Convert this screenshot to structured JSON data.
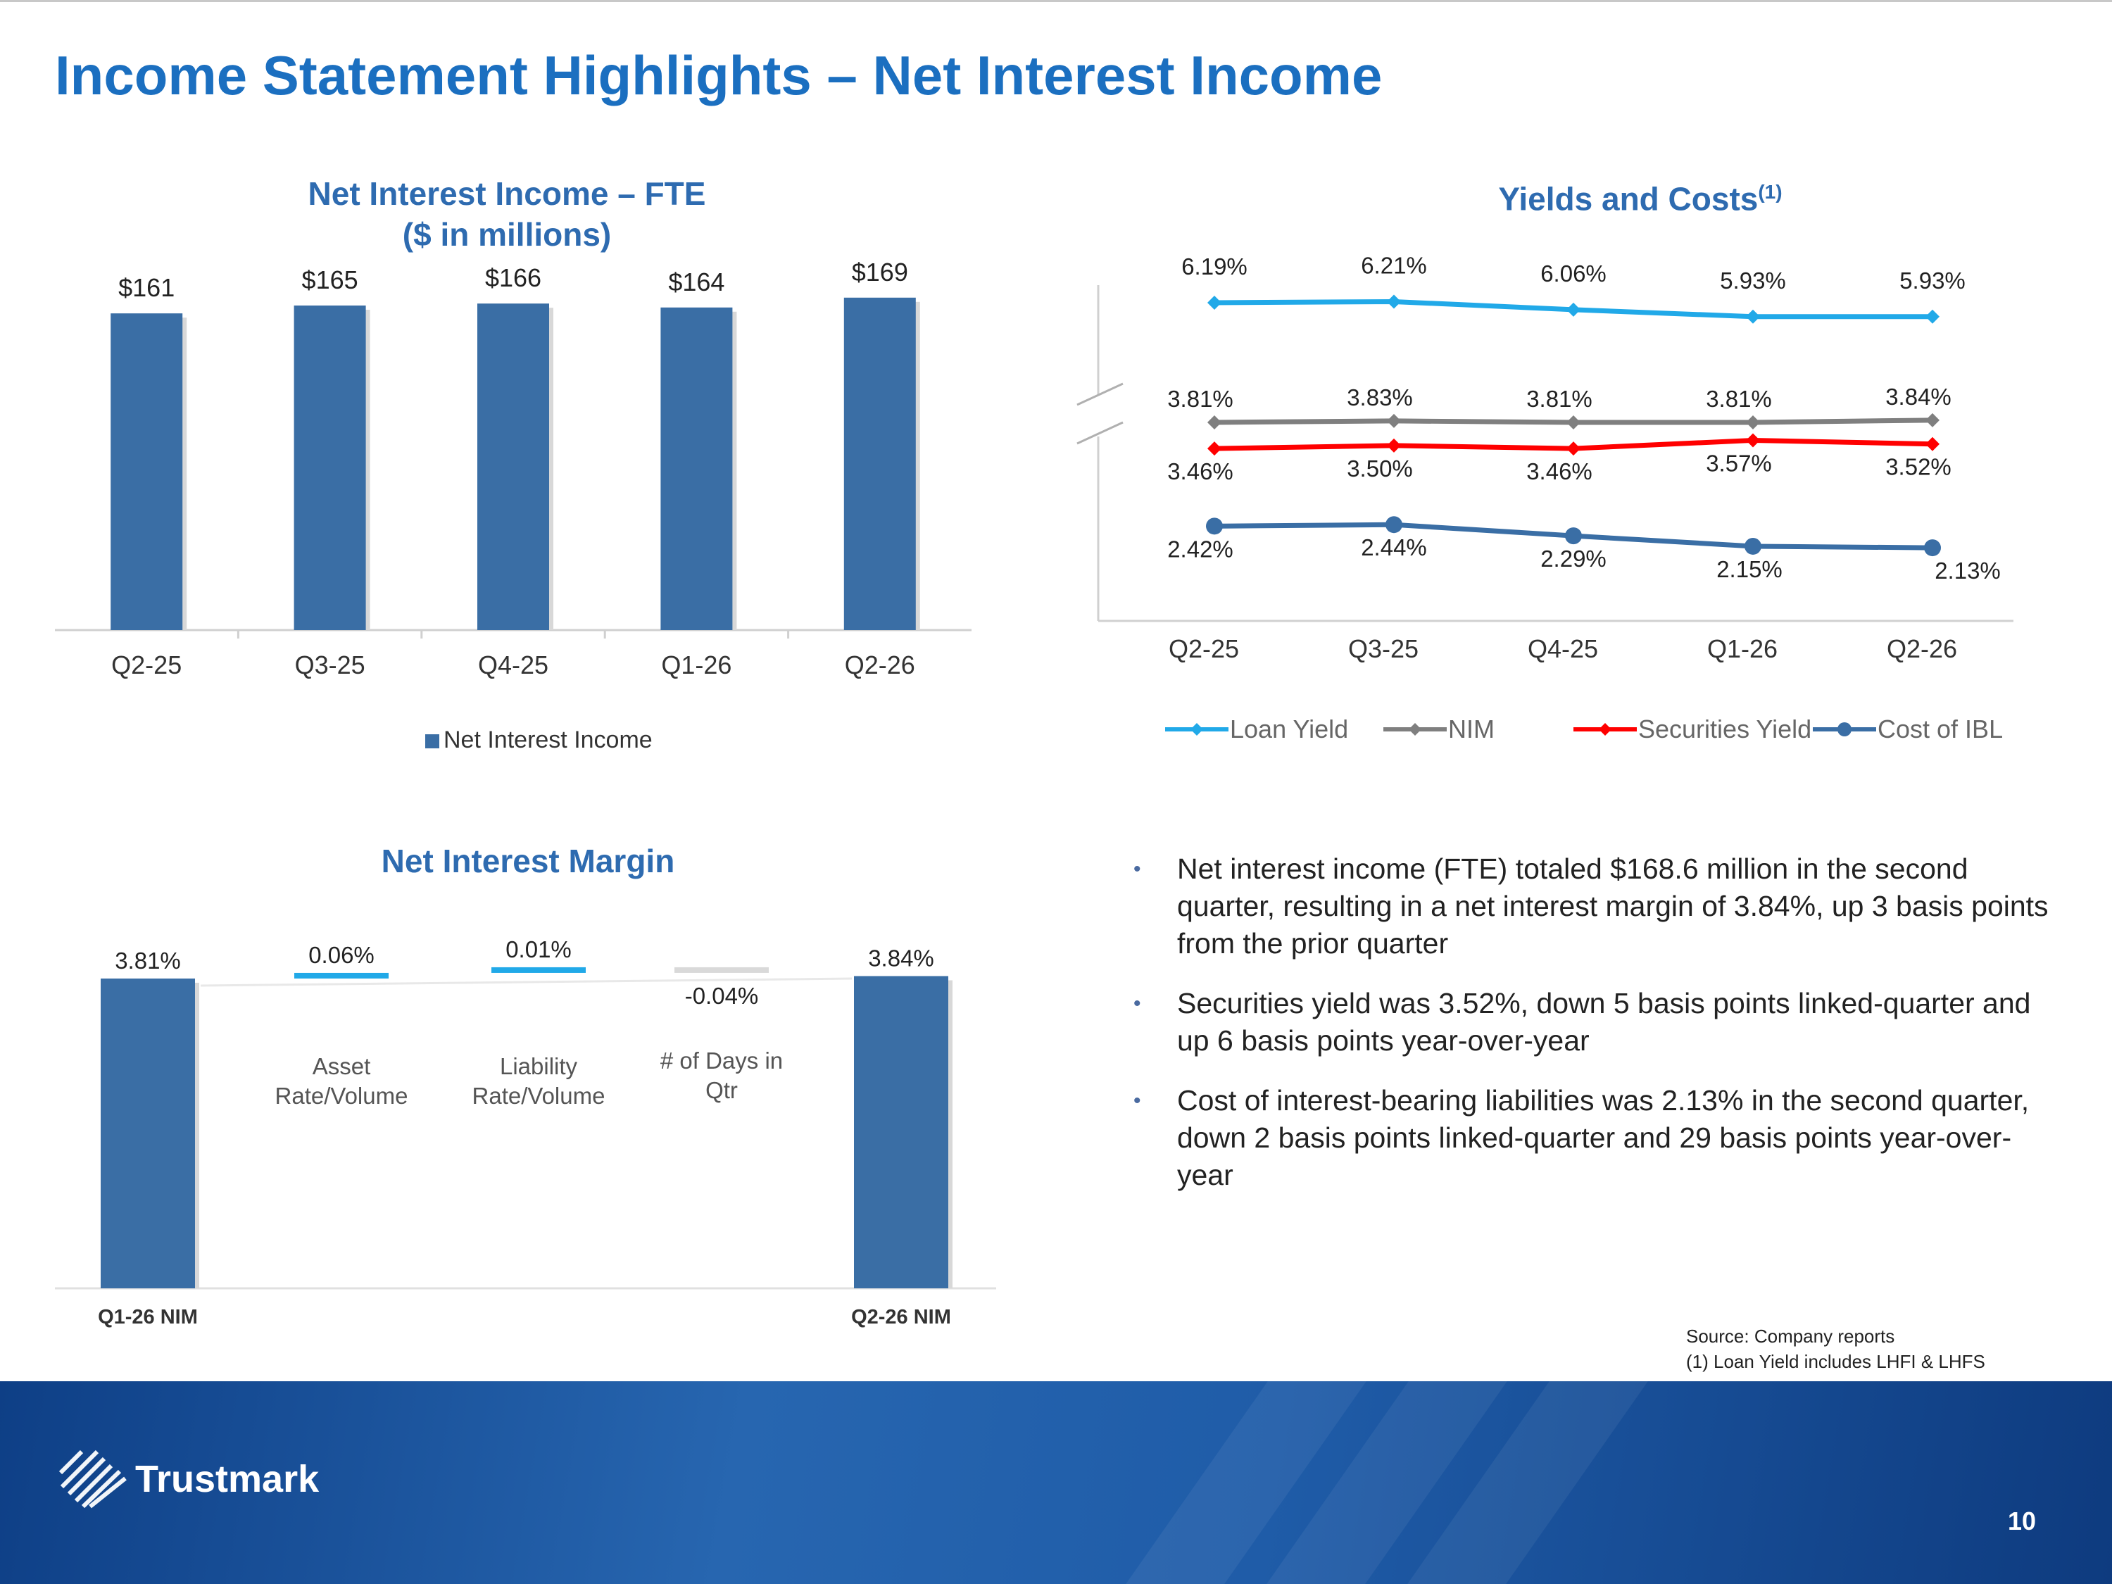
{
  "page": {
    "title": "Income Statement Highlights – Net Interest Income",
    "page_number": "10",
    "logo_text": "Trustmark"
  },
  "colors": {
    "bar": "#3a6ea5",
    "loan_yield": "#21a9e8",
    "nim": "#7f7f7f",
    "securities_yield": "#ff0000",
    "cost_ibl": "#3a6ea5",
    "title": "#1b6fc0"
  },
  "chart_data": [
    {
      "type": "bar",
      "title_line1": "Net Interest Income – FTE",
      "title_line2": "($ in millions)",
      "categories": [
        "Q2-25",
        "Q3-25",
        "Q4-25",
        "Q1-26",
        "Q2-26"
      ],
      "series": [
        {
          "name": "Net Interest Income",
          "values": [
            161,
            165,
            166,
            164,
            169
          ]
        }
      ],
      "data_labels": [
        "$161",
        "$165",
        "$166",
        "$164",
        "$169"
      ],
      "legend": "bottom",
      "grid": false
    },
    {
      "type": "line",
      "title": "Yields and Costs",
      "title_superscript": "(1)",
      "categories": [
        "Q2-25",
        "Q3-25",
        "Q4-25",
        "Q1-26",
        "Q2-26"
      ],
      "series": [
        {
          "name": "Loan Yield",
          "values": [
            6.19,
            6.21,
            6.06,
            5.93,
            5.93
          ],
          "labels": [
            "6.19%",
            "6.21%",
            "6.06%",
            "5.93%",
            "5.93%"
          ]
        },
        {
          "name": "NIM",
          "values": [
            3.81,
            3.83,
            3.81,
            3.81,
            3.84
          ],
          "labels": [
            "3.81%",
            "3.83%",
            "3.81%",
            "3.81%",
            "3.84%"
          ]
        },
        {
          "name": "Securities Yield",
          "values": [
            3.46,
            3.5,
            3.46,
            3.57,
            3.52
          ],
          "labels": [
            "3.46%",
            "3.50%",
            "3.46%",
            "3.57%",
            "3.52%"
          ]
        },
        {
          "name": "Cost of IBL",
          "values": [
            2.42,
            2.44,
            2.29,
            2.15,
            2.13
          ],
          "labels": [
            "2.42%",
            "2.44%",
            "2.29%",
            "2.15%",
            "2.13%"
          ]
        }
      ],
      "axis_break": true,
      "legend": "bottom"
    },
    {
      "type": "bar",
      "subtype": "waterfall",
      "title": "Net Interest Margin",
      "categories": [
        "Q1-26 NIM",
        "Asset Rate/Volume",
        "Liability Rate/Volume",
        "# of Days in Qtr",
        "Q2-26 NIM"
      ],
      "category_lines": [
        [
          "Q1-26 NIM"
        ],
        [
          "Asset",
          "Rate/Volume"
        ],
        [
          "Liability",
          "Rate/Volume"
        ],
        [
          "# of Days in",
          "Qtr"
        ],
        [
          "Q2-26 NIM"
        ]
      ],
      "values": [
        3.81,
        0.06,
        0.01,
        -0.04,
        3.84
      ],
      "labels": [
        "3.81%",
        "0.06%",
        "0.01%",
        "-0.04%",
        "3.84%"
      ],
      "kinds": [
        "total",
        "delta",
        "delta",
        "delta",
        "total"
      ]
    }
  ],
  "bullets": [
    "Net interest income (FTE) totaled $168.6 million in the second quarter, resulting in a net interest margin of 3.84%, up 3 basis points from the prior quarter",
    "Securities yield was 3.52%, down 5 basis points linked-quarter and up 6 basis points year-over-year",
    "Cost of interest-bearing liabilities was 2.13% in the second quarter, down 2 basis points linked-quarter and 29 basis points year-over-year"
  ],
  "source": {
    "line1": "Source: Company reports",
    "line2": "(1) Loan Yield  includes LHFI & LHFS"
  }
}
